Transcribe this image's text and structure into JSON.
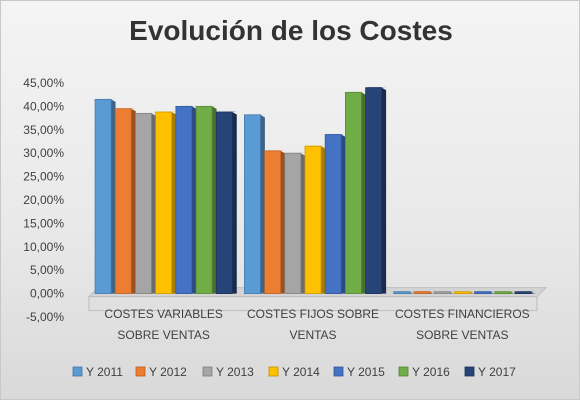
{
  "chart_data": {
    "type": "bar",
    "title": "Evolución de los Costes",
    "categories": [
      [
        "COSTES VARIABLES",
        "SOBRE VENTAS"
      ],
      [
        "COSTES FIJOS SOBRE",
        "VENTAS"
      ],
      [
        "COSTES FINANCIEROS",
        "SOBRE VENTAS"
      ]
    ],
    "series": [
      {
        "name": "Y 2011",
        "color": "#5b9bd5",
        "values": [
          41.5,
          38.2,
          0.4
        ]
      },
      {
        "name": "Y 2012",
        "color": "#ed7d31",
        "values": [
          39.5,
          30.5,
          0.4
        ]
      },
      {
        "name": "Y 2013",
        "color": "#a5a5a5",
        "values": [
          38.5,
          30.0,
          0.4
        ]
      },
      {
        "name": "Y 2014",
        "color": "#ffc000",
        "values": [
          38.8,
          31.5,
          0.4
        ]
      },
      {
        "name": "Y 2015",
        "color": "#4472c4",
        "values": [
          40.0,
          34.0,
          0.4
        ]
      },
      {
        "name": "Y 2016",
        "color": "#70ad47",
        "values": [
          40.0,
          43.0,
          0.4
        ]
      },
      {
        "name": "Y 2017",
        "color": "#264478",
        "values": [
          38.8,
          44.0,
          0.4
        ]
      }
    ],
    "ylim": [
      -5,
      45
    ],
    "yticks": [
      "45,00%",
      "40,00%",
      "35,00%",
      "30,00%",
      "25,00%",
      "20,00%",
      "15,00%",
      "10,00%",
      "5,00%",
      "0,00%",
      "-5,00%"
    ],
    "ytick_values": [
      45,
      40,
      35,
      30,
      25,
      20,
      15,
      10,
      5,
      0,
      -5
    ],
    "grid": false,
    "legend": "bottom"
  }
}
